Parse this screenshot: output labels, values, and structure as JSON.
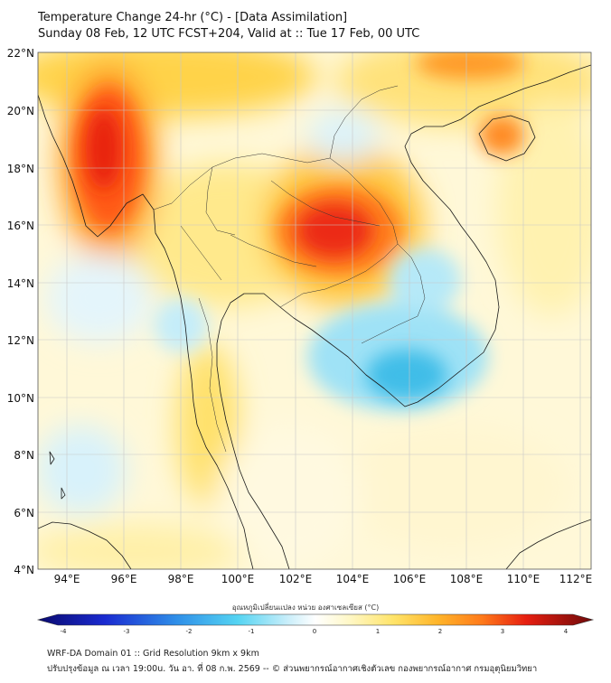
{
  "header": {
    "title": "Temperature Change 24-hr (°C) - [Data Assimilation]",
    "subtitle": "Sunday 08 Feb, 12 UTC FCST+204, Valid at :: Tue 17 Feb, 00 UTC"
  },
  "axes": {
    "lat_labels": [
      "22°N",
      "20°N",
      "18°N",
      "16°N",
      "14°N",
      "12°N",
      "10°N",
      "8°N",
      "6°N",
      "4°N"
    ],
    "lon_labels": [
      "94°E",
      "96°E",
      "98°E",
      "100°E",
      "102°E",
      "104°E",
      "106°E",
      "108°E",
      "110°E",
      "112°E"
    ]
  },
  "colorbar": {
    "title": "อุณหภูมิเปลี่ยนแปลง หน่วย องศาเซลเซียส (°C)",
    "ticks": [
      "-4",
      "-3",
      "-2",
      "-1",
      "0",
      "1",
      "2",
      "3",
      "4"
    ]
  },
  "footer": {
    "line1": "WRF-DA Domain 01 :: Grid Resolution 9km x 9km",
    "line2": "ปรับปรุงข้อมูล ณ เวลา 19:00u. วัน อา. ที่ 08 ก.พ. 2569 -- © ส่วนพยากรณ์อากาศเชิงตัวเลข กองพยากรณ์อากาศ กรมอุตุนิยมวิทยา"
  }
}
